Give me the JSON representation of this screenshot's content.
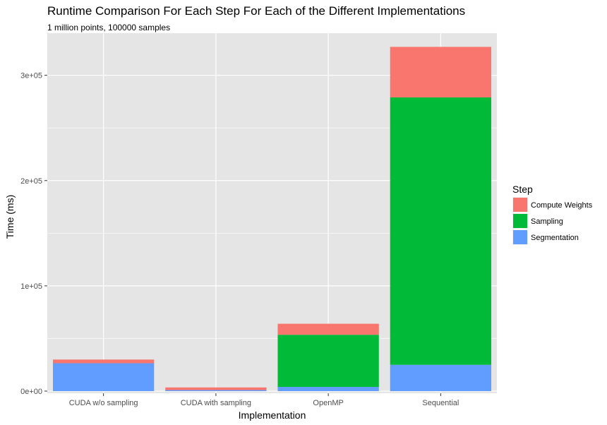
{
  "chart_data": {
    "type": "bar",
    "stacked": true,
    "title": "Runtime Comparison For Each Step For Each of the Different Implementations",
    "subtitle": "1 million points, 100000 samples",
    "xlabel": "Implementation",
    "ylabel": "Time (ms)",
    "categories": [
      "CUDA w/o sampling",
      "CUDA with sampling",
      "OpenMP",
      "Sequential"
    ],
    "ylim": [
      -2000,
      340000
    ],
    "yticks": [
      {
        "value": 0,
        "label": "0e+00"
      },
      {
        "value": 100000,
        "label": "1e+05"
      },
      {
        "value": 200000,
        "label": "2e+05"
      },
      {
        "value": 300000,
        "label": "3e+05"
      }
    ],
    "grid": true,
    "legend": {
      "title": "Step",
      "position": "right"
    },
    "series": [
      {
        "name": "Segmentation",
        "color": "#619CFF",
        "values": [
          26500,
          1000,
          4000,
          25000
        ]
      },
      {
        "name": "Sampling",
        "color": "#00BA38",
        "values": [
          0,
          0,
          49500,
          254000
        ]
      },
      {
        "name": "Compute Weights",
        "color": "#F8766D",
        "values": [
          3500,
          2500,
          10500,
          48000
        ]
      }
    ],
    "legend_order": [
      "Compute Weights",
      "Sampling",
      "Segmentation"
    ],
    "panel_background": "#E5E5E5",
    "grid_color": "#FFFFFF"
  }
}
